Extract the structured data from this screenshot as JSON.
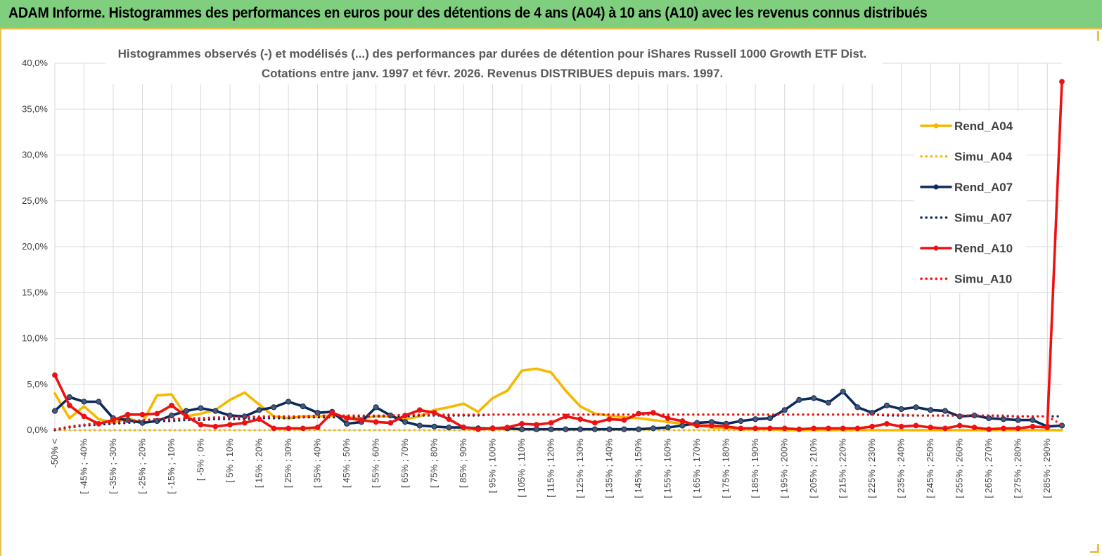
{
  "banner": {
    "title": "ADAM Informe. Histogrammes des performances en euros pour des détentions de 4 ans (A04) à 10 ans (A10) avec les revenus connus distribués"
  },
  "colors": {
    "banner_bg": "#7fcf7f",
    "frame": "#e8c24a",
    "A04": "#f5b800",
    "A07": "#0b2a5c",
    "A10": "#ee1111",
    "grid": "#d9d9d9"
  },
  "chart_data": {
    "type": "line",
    "title": "Histogrammes observés (-)  et modélisés (...) des performances par durées de détention pour iShares Russell 1000 Growth ETF Dist.",
    "subtitle": "Cotations entre janv. 1997 et févr. 2026. Revenus DISTRIBUES depuis mars. 1997.",
    "ylim": [
      0,
      40
    ],
    "yticks": [
      "0,0%",
      "5,0%",
      "10,0%",
      "15,0%",
      "20,0%",
      "25,0%",
      "30,0%",
      "35,0%",
      "40,0%"
    ],
    "grid": true,
    "legend_position": "right",
    "x_labels": [
      "-50% <",
      "[ -45% ; -40%",
      "[ -35% ; -30%",
      "[ -25% ; -20%",
      "[ -15% ; -10%",
      "[ -5% ; 0%",
      "[ 5% ; 10%",
      "[ 15% ; 20%",
      "[ 25% ; 30%",
      "[ 35% ; 40%",
      "[ 45% ; 50%",
      "[ 55% ; 60%",
      "[ 65% ; 70%",
      "[ 75% ; 80%",
      "[ 85% ; 90%",
      "[ 95% ; 100%",
      "[ 105% ; 110%",
      "[ 115% ; 120%",
      "[ 125% ; 130%",
      "[ 135% ; 140%",
      "[ 145% ; 150%",
      "[ 155% ; 160%",
      "[ 165% ; 170%",
      "[ 175% ; 180%",
      "[ 185% ; 190%",
      "[ 195% ; 200%",
      "[ 205% ; 210%",
      "[ 215% ; 220%",
      "[ 225% ; 230%",
      "[ 235% ; 240%",
      "[ 245% ; 250%",
      "[ 255% ; 260%",
      "[ 265% ; 270%",
      "[ 275% ; 280%",
      "[ 285% ; 290%"
    ],
    "series": [
      {
        "name": "Rend_A04",
        "style": "solid",
        "color": "#f5b800",
        "values": [
          4.0,
          1.3,
          2.6,
          1.2,
          0.8,
          1.3,
          0.8,
          3.8,
          3.9,
          1.5,
          1.8,
          2.2,
          3.3,
          4.1,
          2.8,
          1.5,
          1.3,
          1.5,
          1.5,
          1.6,
          1.4,
          1.3,
          1.5,
          1.5,
          1.2,
          1.5,
          2.2,
          2.5,
          2.9,
          2.0,
          3.5,
          4.3,
          6.5,
          6.7,
          6.3,
          4.3,
          2.6,
          1.8,
          1.6,
          1.4,
          1.3,
          1.1,
          0.9,
          0.7,
          0.5,
          0.3,
          0.2,
          0.1,
          0.1,
          0.1,
          0.0,
          0.0,
          0.0,
          0.0,
          0.0,
          0.0,
          0.0,
          0.0,
          0.0,
          0.0,
          0.0,
          0.0,
          0.0,
          0.0,
          0.0,
          0.0,
          0.0,
          0.0,
          0.0,
          0.0
        ]
      },
      {
        "name": "Simu_A04",
        "style": "dotted",
        "color": "#f5b800",
        "values": [
          0.0,
          0.0,
          0.0,
          0.0,
          0.0,
          0.0,
          0.0,
          0.0,
          0.0,
          0.0,
          0.0,
          0.0,
          0.0,
          0.0,
          0.0,
          0.0,
          0.0,
          0.0,
          0.0,
          0.0,
          0.0,
          0.0,
          0.0,
          0.0,
          0.0,
          0.0,
          0.0,
          0.0,
          0.0,
          0.0,
          0.0,
          0.0,
          0.0,
          0.0,
          0.0,
          0.0,
          0.0,
          0.0,
          0.0,
          0.0,
          0.0,
          0.0,
          0.0,
          0.0,
          0.0,
          0.0,
          0.0,
          0.0,
          0.0,
          0.0,
          0.0,
          0.0,
          0.0,
          0.0,
          0.0,
          0.0,
          0.0,
          0.0,
          0.0,
          0.0,
          0.0,
          0.0,
          0.0,
          0.0,
          0.0,
          0.0,
          0.0,
          0.0,
          0.0,
          0.0
        ]
      },
      {
        "name": "Rend_A07",
        "style": "solid",
        "color": "#0b2a5c",
        "values": [
          2.1,
          3.6,
          3.1,
          3.1,
          1.3,
          1.1,
          0.8,
          1.0,
          1.6,
          2.1,
          2.4,
          2.1,
          1.6,
          1.5,
          2.2,
          2.5,
          3.1,
          2.6,
          1.9,
          2.0,
          0.7,
          0.9,
          2.5,
          1.6,
          0.9,
          0.5,
          0.4,
          0.3,
          0.3,
          0.2,
          0.2,
          0.2,
          0.1,
          0.1,
          0.1,
          0.1,
          0.1,
          0.1,
          0.1,
          0.1,
          0.1,
          0.2,
          0.3,
          0.5,
          0.8,
          0.9,
          0.7,
          1.0,
          1.2,
          1.3,
          2.2,
          3.3,
          3.5,
          3.0,
          4.2,
          2.5,
          1.9,
          2.7,
          2.3,
          2.5,
          2.2,
          2.1,
          1.5,
          1.6,
          1.3,
          1.2,
          1.1,
          1.1,
          0.4,
          0.5
        ]
      },
      {
        "name": "Simu_A07",
        "style": "dotted",
        "color": "#0b2a5c",
        "values": [
          0.0,
          0.3,
          0.5,
          0.6,
          0.7,
          0.8,
          0.9,
          1.0,
          1.0,
          1.1,
          1.1,
          1.2,
          1.2,
          1.2,
          1.3,
          1.3,
          1.3,
          1.4,
          1.4,
          1.4,
          1.4,
          1.5,
          1.5,
          1.5,
          1.5,
          1.6,
          1.6,
          1.6,
          1.6,
          1.6,
          1.7,
          1.7,
          1.7,
          1.7,
          1.7,
          1.7,
          1.7,
          1.7,
          1.7,
          1.7,
          1.7,
          1.7,
          1.7,
          1.7,
          1.7,
          1.7,
          1.7,
          1.7,
          1.7,
          1.7,
          1.7,
          1.7,
          1.7,
          1.7,
          1.7,
          1.7,
          1.7,
          1.6,
          1.6,
          1.6,
          1.6,
          1.6,
          1.6,
          1.6,
          1.6,
          1.5,
          1.5,
          1.5,
          1.5,
          1.5
        ]
      },
      {
        "name": "Rend_A10",
        "style": "solid",
        "color": "#ee1111",
        "values": [
          6.0,
          2.7,
          1.5,
          0.7,
          1.1,
          1.7,
          1.7,
          1.8,
          2.7,
          1.5,
          0.6,
          0.4,
          0.6,
          0.8,
          1.2,
          0.2,
          0.2,
          0.2,
          0.3,
          1.9,
          1.3,
          1.1,
          0.9,
          0.8,
          1.6,
          2.2,
          1.9,
          1.2,
          0.3,
          0.1,
          0.2,
          0.3,
          0.7,
          0.6,
          0.8,
          1.5,
          1.2,
          0.8,
          1.2,
          1.1,
          1.8,
          1.9,
          1.3,
          1.0,
          0.5,
          0.5,
          0.4,
          0.2,
          0.2,
          0.2,
          0.2,
          0.1,
          0.2,
          0.2,
          0.2,
          0.2,
          0.4,
          0.7,
          0.4,
          0.5,
          0.3,
          0.2,
          0.5,
          0.3,
          0.1,
          0.2,
          0.2,
          0.4,
          0.3,
          38.0
        ]
      },
      {
        "name": "Simu_A10",
        "style": "dotted",
        "color": "#ee1111",
        "values": [
          0.1,
          0.4,
          0.6,
          0.8,
          0.9,
          1.0,
          1.1,
          1.2,
          1.2,
          1.3,
          1.3,
          1.4,
          1.4,
          1.4,
          1.5,
          1.5,
          1.5,
          1.5,
          1.6,
          1.6,
          1.6,
          1.6,
          1.6,
          1.6,
          1.7,
          1.7,
          1.7,
          1.7,
          1.7,
          1.7,
          1.7,
          1.7,
          1.7,
          1.7,
          1.7,
          1.7,
          1.7,
          1.7,
          1.7,
          1.7,
          1.7,
          1.7,
          1.7,
          1.7,
          1.7,
          1.7,
          1.7,
          1.7,
          1.7,
          1.7,
          1.7,
          1.7,
          1.7,
          1.7,
          1.7,
          1.7,
          1.7,
          1.7,
          1.7,
          1.6,
          1.6,
          1.6,
          1.6,
          1.6,
          1.6,
          1.6,
          1.5,
          1.5,
          1.5,
          0.6
        ]
      }
    ]
  }
}
